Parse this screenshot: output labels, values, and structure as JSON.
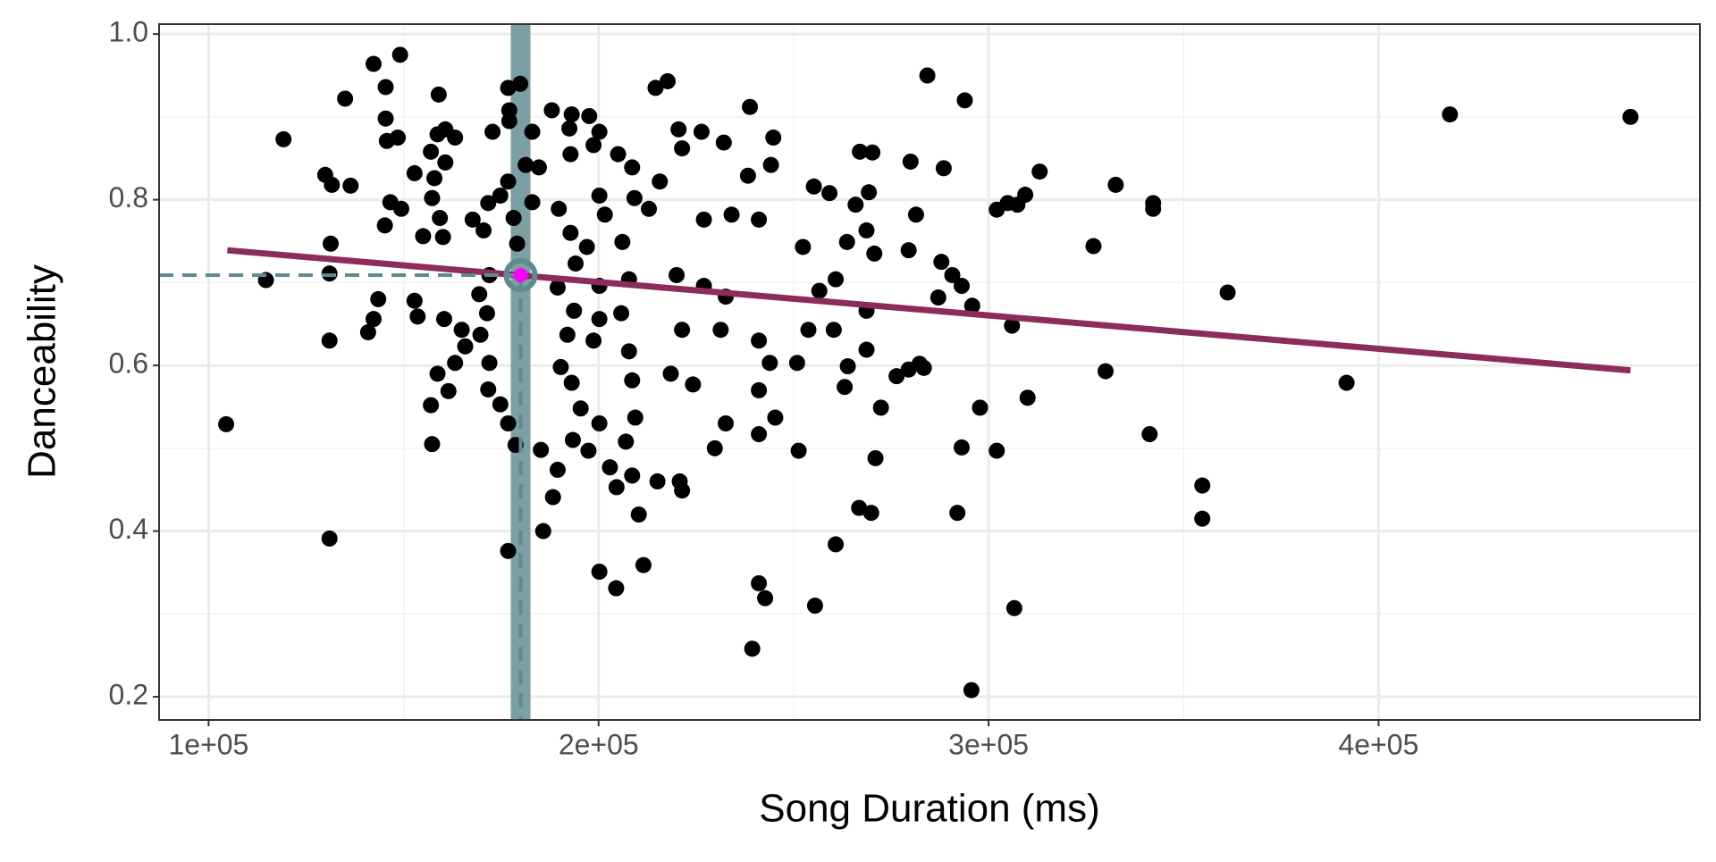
{
  "chart_data": {
    "type": "scatter",
    "x_label": "Song Duration (ms)",
    "y_label": "Danceability",
    "xlim": [
      87300,
      482400
    ],
    "xticks": [
      {
        "value": 100000,
        "label": "1e+05"
      },
      {
        "value": 200000,
        "label": "2e+05"
      },
      {
        "value": 300000,
        "label": "3e+05"
      },
      {
        "value": 400000,
        "label": "4e+05"
      }
    ],
    "ylim": [
      0.172,
      1.012
    ],
    "yticks": [
      0.2,
      0.4,
      0.6,
      0.8,
      {
        "value": 1,
        "label": "1.0"
      }
    ],
    "grid": true,
    "color": "#000000",
    "x": [
      104500,
      119200,
      114700,
      131000,
      131000,
      129900,
      131600,
      136400,
      135000,
      131000,
      131300,
      142300,
      149100,
      145400,
      145400,
      145700,
      148500,
      146600,
      145200,
      149400,
      140900,
      142300,
      143500,
      157300,
      157000,
      159000,
      158700,
      160700,
      157000,
      157900,
      160700,
      163200,
      152800,
      157300,
      159300,
      155000,
      160100,
      152800,
      153600,
      160400,
      161500,
      158700,
      163200,
      165800,
      164900,
      170500,
      167700,
      171700,
      174800,
      176800,
      179900,
      177100,
      177100,
      172800,
      183000,
      181300,
      184700,
      176800,
      183000,
      178200,
      179100,
      172000,
      169400,
      171400,
      169700,
      172000,
      171700,
      174800,
      176800,
      178700,
      176800,
      185200,
      185800,
      188300,
      189500,
      188000,
      193100,
      197600,
      192500,
      192800,
      200200,
      198700,
      189800,
      192800,
      197000,
      194100,
      189500,
      193700,
      192000,
      190300,
      193100,
      195400,
      193400,
      197400,
      200200,
      198700,
      200200,
      200200,
      201600,
      200200,
      205000,
      208600,
      209200,
      206100,
      207800,
      205800,
      207800,
      208600,
      207000,
      202900,
      204600,
      200200,
      204500,
      211500,
      210300,
      208600,
      209400,
      215100,
      220800,
      221400,
      214600,
      217700,
      212900,
      215700,
      220500,
      221400,
      226400,
      232100,
      238800,
      244800,
      244200,
      238300,
      234100,
      241100,
      227000,
      220000,
      227000,
      232600,
      221400,
      231300,
      241100,
      243900,
      218500,
      224200,
      232600,
      229800,
      241100,
      245300,
      241100,
      250900,
      253800,
      256600,
      252400,
      255200,
      259200,
      265900,
      267000,
      270200,
      269300,
      268700,
      270700,
      263700,
      260800,
      260300,
      263900,
      263100,
      268700,
      268700,
      272400,
      271000,
      266800,
      269900,
      260800,
      251300,
      239400,
      241100,
      242700,
      255500,
      276400,
      279500,
      282300,
      283400,
      280000,
      281400,
      279500,
      284300,
      288500,
      287900,
      287100,
      290700,
      293100,
      293900,
      295800,
      297800,
      293100,
      292000,
      295600,
      306600,
      302100,
      302100,
      304900,
      307400,
      309400,
      313100,
      306000,
      310000,
      326900,
      330000,
      332600,
      342200,
      342200,
      341300,
      354800,
      354800,
      361300,
      391800,
      418300,
      464600
    ],
    "values": [
      0.529,
      0.873,
      0.703,
      0.391,
      0.63,
      0.83,
      0.818,
      0.817,
      0.922,
      0.711,
      0.747,
      0.964,
      0.975,
      0.936,
      0.898,
      0.871,
      0.875,
      0.797,
      0.769,
      0.789,
      0.64,
      0.656,
      0.68,
      0.505,
      0.552,
      0.927,
      0.879,
      0.885,
      0.858,
      0.826,
      0.845,
      0.875,
      0.832,
      0.802,
      0.778,
      0.756,
      0.755,
      0.678,
      0.659,
      0.656,
      0.569,
      0.59,
      0.603,
      0.623,
      0.643,
      0.763,
      0.776,
      0.796,
      0.805,
      0.935,
      0.94,
      0.908,
      0.895,
      0.882,
      0.882,
      0.842,
      0.839,
      0.822,
      0.797,
      0.778,
      0.747,
      0.709,
      0.686,
      0.663,
      0.637,
      0.603,
      0.571,
      0.553,
      0.53,
      0.504,
      0.376,
      0.498,
      0.4,
      0.441,
      0.474,
      0.908,
      0.903,
      0.901,
      0.886,
      0.855,
      0.882,
      0.866,
      0.789,
      0.76,
      0.743,
      0.723,
      0.694,
      0.666,
      0.637,
      0.598,
      0.579,
      0.548,
      0.51,
      0.497,
      0.53,
      0.63,
      0.656,
      0.696,
      0.782,
      0.805,
      0.855,
      0.839,
      0.802,
      0.749,
      0.704,
      0.663,
      0.617,
      0.582,
      0.508,
      0.477,
      0.453,
      0.351,
      0.331,
      0.359,
      0.42,
      0.467,
      0.537,
      0.46,
      0.46,
      0.449,
      0.935,
      0.943,
      0.789,
      0.822,
      0.885,
      0.862,
      0.882,
      0.869,
      0.912,
      0.875,
      0.842,
      0.829,
      0.782,
      0.776,
      0.776,
      0.709,
      0.696,
      0.683,
      0.643,
      0.643,
      0.63,
      0.603,
      0.59,
      0.577,
      0.53,
      0.5,
      0.517,
      0.537,
      0.57,
      0.603,
      0.643,
      0.69,
      0.743,
      0.816,
      0.808,
      0.794,
      0.858,
      0.857,
      0.809,
      0.763,
      0.735,
      0.749,
      0.704,
      0.643,
      0.599,
      0.574,
      0.666,
      0.619,
      0.549,
      0.488,
      0.428,
      0.422,
      0.384,
      0.497,
      0.258,
      0.337,
      0.319,
      0.31,
      0.587,
      0.595,
      0.602,
      0.597,
      0.846,
      0.782,
      0.739,
      0.95,
      0.838,
      0.725,
      0.682,
      0.709,
      0.696,
      0.92,
      0.672,
      0.549,
      0.501,
      0.422,
      0.208,
      0.307,
      0.497,
      0.788,
      0.796,
      0.794,
      0.806,
      0.834,
      0.648,
      0.561,
      0.744,
      0.593,
      0.818,
      0.796,
      0.789,
      0.517,
      0.455,
      0.415,
      0.688,
      0.579,
      0.903,
      0.9
    ],
    "trend": {
      "x": [
        104800,
        464600
      ],
      "y": [
        0.739,
        0.594
      ],
      "color": "#8b2c5a"
    },
    "highlight": {
      "x": 180000,
      "y": 0.709,
      "color": "#ff00ff",
      "ring_color": "#5f8a8f",
      "band_color": "#7b9fa2"
    }
  }
}
